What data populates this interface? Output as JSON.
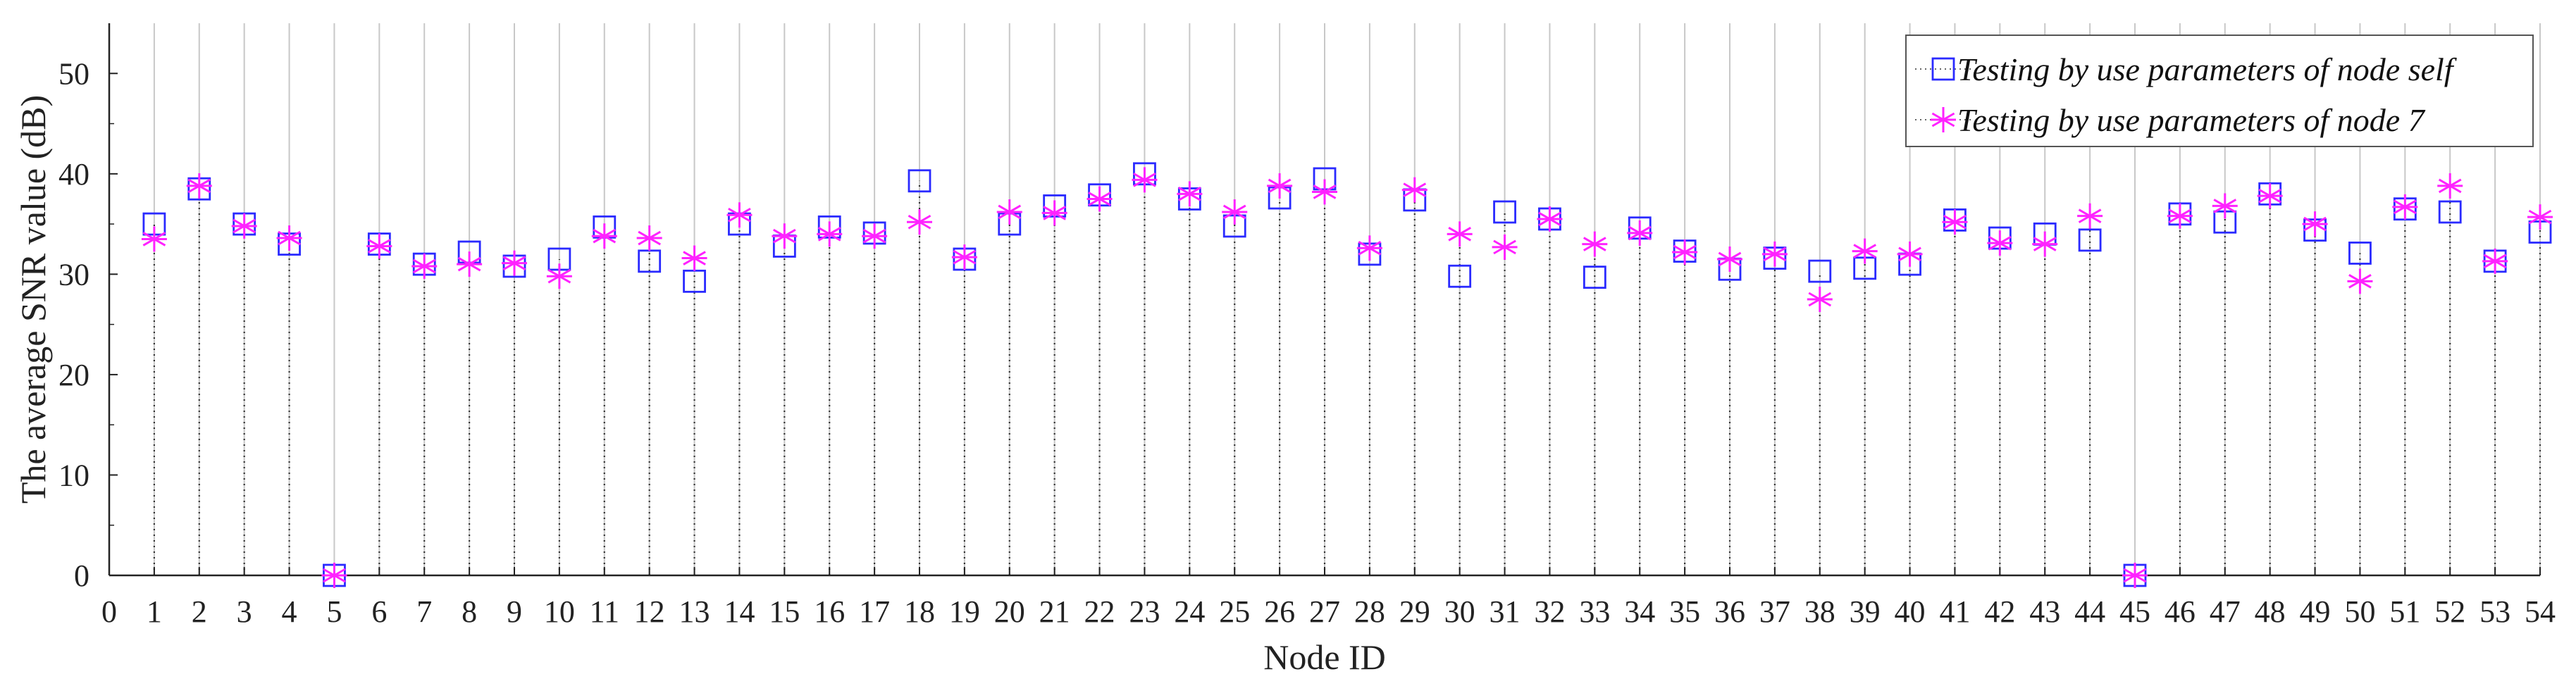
{
  "chart_data": {
    "type": "scatter",
    "xlabel": "Node ID",
    "ylabel": "The average SNR value (dB)",
    "xlim": [
      0,
      54
    ],
    "ylim": [
      0,
      55
    ],
    "x_ticks": [
      0,
      1,
      2,
      3,
      4,
      5,
      6,
      7,
      8,
      9,
      10,
      11,
      12,
      13,
      14,
      15,
      16,
      17,
      18,
      19,
      20,
      21,
      22,
      23,
      24,
      25,
      26,
      27,
      28,
      29,
      30,
      31,
      32,
      33,
      34,
      35,
      36,
      37,
      38,
      39,
      40,
      41,
      42,
      43,
      44,
      45,
      46,
      47,
      48,
      49,
      50,
      51,
      52,
      53,
      54
    ],
    "y_ticks": [
      0,
      10,
      20,
      30,
      40,
      50
    ],
    "grid": "vertical",
    "stems": "dotted",
    "legend_position": "top-right",
    "x": [
      1,
      2,
      3,
      4,
      5,
      6,
      7,
      8,
      9,
      10,
      11,
      12,
      13,
      14,
      15,
      16,
      17,
      18,
      19,
      20,
      21,
      22,
      23,
      24,
      25,
      26,
      27,
      28,
      29,
      30,
      31,
      32,
      33,
      34,
      35,
      36,
      37,
      38,
      39,
      40,
      41,
      42,
      43,
      44,
      45,
      46,
      47,
      48,
      49,
      50,
      51,
      52,
      53,
      54
    ],
    "series": [
      {
        "name": "Testing by use parameters of node self",
        "marker": "square",
        "color": "#2a2aff",
        "values": [
          35.0,
          38.5,
          35.0,
          33.0,
          0,
          33.0,
          31.0,
          32.2,
          30.8,
          31.5,
          34.7,
          31.3,
          29.3,
          35.0,
          32.8,
          34.7,
          34.1,
          39.3,
          31.5,
          35.0,
          36.8,
          37.9,
          40.0,
          37.5,
          34.8,
          37.6,
          39.5,
          32.0,
          37.4,
          29.8,
          36.2,
          35.5,
          29.7,
          34.6,
          32.3,
          30.5,
          31.6,
          30.3,
          30.6,
          31.0,
          35.4,
          33.6,
          34.0,
          33.4,
          0,
          36.0,
          35.2,
          38.0,
          34.4,
          32.1,
          36.5,
          36.2,
          31.3,
          34.2
        ]
      },
      {
        "name": "Testing by use parameters of node 7",
        "marker": "asterisk",
        "color": "#ff22ff",
        "values": [
          33.5,
          38.8,
          34.8,
          33.6,
          0,
          32.8,
          30.8,
          31.0,
          31.1,
          29.8,
          33.8,
          33.6,
          31.6,
          35.9,
          33.8,
          34.0,
          33.8,
          35.2,
          31.7,
          36.2,
          36.1,
          37.5,
          39.4,
          38.0,
          36.2,
          38.8,
          38.2,
          32.6,
          38.4,
          34.0,
          32.7,
          35.5,
          33.0,
          34.1,
          32.2,
          31.5,
          32.0,
          27.5,
          32.3,
          32.0,
          35.2,
          33.1,
          33.0,
          35.8,
          0,
          35.8,
          36.8,
          37.8,
          35.0,
          29.3,
          36.7,
          38.8,
          31.3,
          35.7
        ]
      }
    ]
  }
}
